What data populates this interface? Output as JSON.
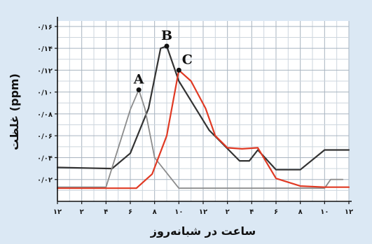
{
  "chart_data": {
    "type": "line",
    "xlabel": "ساعت در شبانه‌روز",
    "ylabel": "غلظت (ppm)",
    "x_ticks": [
      0,
      2,
      4,
      6,
      8,
      10,
      12,
      14,
      16,
      18,
      20,
      22,
      24
    ],
    "x_tick_labels": [
      "۱۲",
      "۲",
      "۴",
      "۶",
      "۸",
      "۱۰",
      "۱۲",
      "۲",
      "۴",
      "۶",
      "۸",
      "۱۰",
      "۱۲"
    ],
    "y_ticks": [
      0.02,
      0.04,
      0.06,
      0.08,
      0.1,
      0.12,
      0.14,
      0.16
    ],
    "y_tick_labels": [
      "۰/۰۲",
      "۰/۰۴",
      "۰/۰۶",
      "۰/۰۸",
      "۰/۱۰",
      "۰/۱۲",
      "۰/۱۴",
      "۰/۱۶"
    ],
    "xlim": [
      0,
      24
    ],
    "ylim": [
      0,
      0.165
    ],
    "grid": true,
    "series": [
      {
        "color": "#333333",
        "points": [
          [
            0,
            0.031
          ],
          [
            4.5,
            0.03
          ],
          [
            6,
            0.044
          ],
          [
            7.5,
            0.085
          ],
          [
            8.5,
            0.14
          ],
          [
            9,
            0.142
          ],
          [
            10,
            0.11
          ],
          [
            12.5,
            0.065
          ],
          [
            15,
            0.037
          ],
          [
            15.8,
            0.037
          ],
          [
            16.5,
            0.047
          ],
          [
            18,
            0.029
          ],
          [
            20,
            0.029
          ],
          [
            22,
            0.047
          ],
          [
            24,
            0.047
          ]
        ]
      },
      {
        "color": "#8c8c8c",
        "points": [
          [
            0,
            0.013
          ],
          [
            4,
            0.013
          ],
          [
            6,
            0.084
          ],
          [
            6.7,
            0.102
          ],
          [
            7.2,
            0.085
          ],
          [
            8,
            0.04
          ],
          [
            10,
            0.012
          ],
          [
            22,
            0.012
          ],
          [
            22.5,
            0.02
          ],
          [
            23.5,
            0.02
          ]
        ]
      },
      {
        "color": "#e03a24",
        "points": [
          [
            0,
            0.012
          ],
          [
            6.5,
            0.012
          ],
          [
            7.8,
            0.025
          ],
          [
            9,
            0.06
          ],
          [
            10,
            0.12
          ],
          [
            11,
            0.11
          ],
          [
            12.2,
            0.085
          ],
          [
            13,
            0.06
          ],
          [
            14,
            0.049
          ],
          [
            15.2,
            0.048
          ],
          [
            16.5,
            0.049
          ],
          [
            18,
            0.021
          ],
          [
            20,
            0.014
          ],
          [
            22,
            0.013
          ],
          [
            24,
            0.013
          ]
        ]
      }
    ],
    "annotations": [
      {
        "label": "A",
        "x": 6.7,
        "y": 0.102
      },
      {
        "label": "B",
        "x": 9,
        "y": 0.142
      },
      {
        "label": "C",
        "x": 10,
        "y": 0.12
      }
    ]
  }
}
